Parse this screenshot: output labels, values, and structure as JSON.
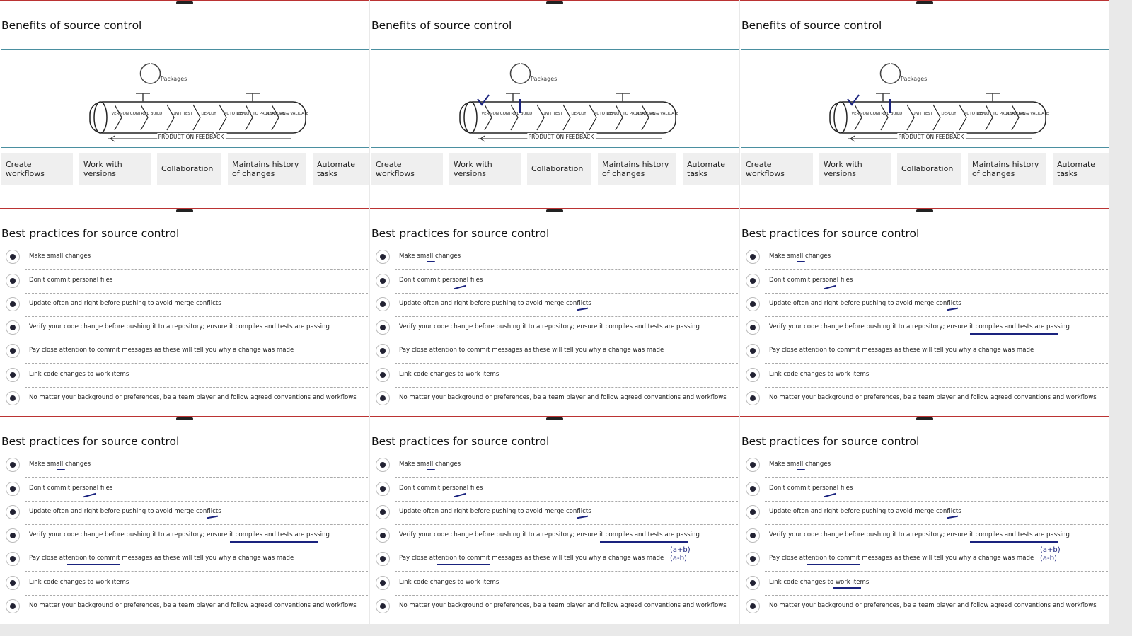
{
  "benefits": {
    "title": "Benefits of source control",
    "pipeline": {
      "packages": "Packages",
      "stages": [
        "VERSION CONTROL",
        "BUILD",
        "UNIT TEST",
        "DEPLOY",
        "AUTO TEST",
        "DEPLOY TO PRODUCTION",
        "MEASURE & VALIDATE"
      ],
      "feedback": "PRODUCTION FEEDBACK"
    },
    "cards": [
      "Create workflows",
      "Work with versions",
      "Collaboration",
      "Maintains history of changes",
      "Automate tasks"
    ]
  },
  "practices": {
    "title": "Best practices for source control",
    "items": [
      "Make small changes",
      "Don't commit personal files",
      "Update often and right before pushing to avoid merge conflicts",
      "Verify your code change before pushing it to a repository; ensure it compiles and tests are passing",
      "Pay close attention to commit messages as these will tell you why a change was made",
      "Link code changes to work items",
      "No matter your background or preferences, be a team player and follow agreed conventions and workflows"
    ]
  },
  "annotations": [
    "(a+b)",
    "(a-b)"
  ]
}
